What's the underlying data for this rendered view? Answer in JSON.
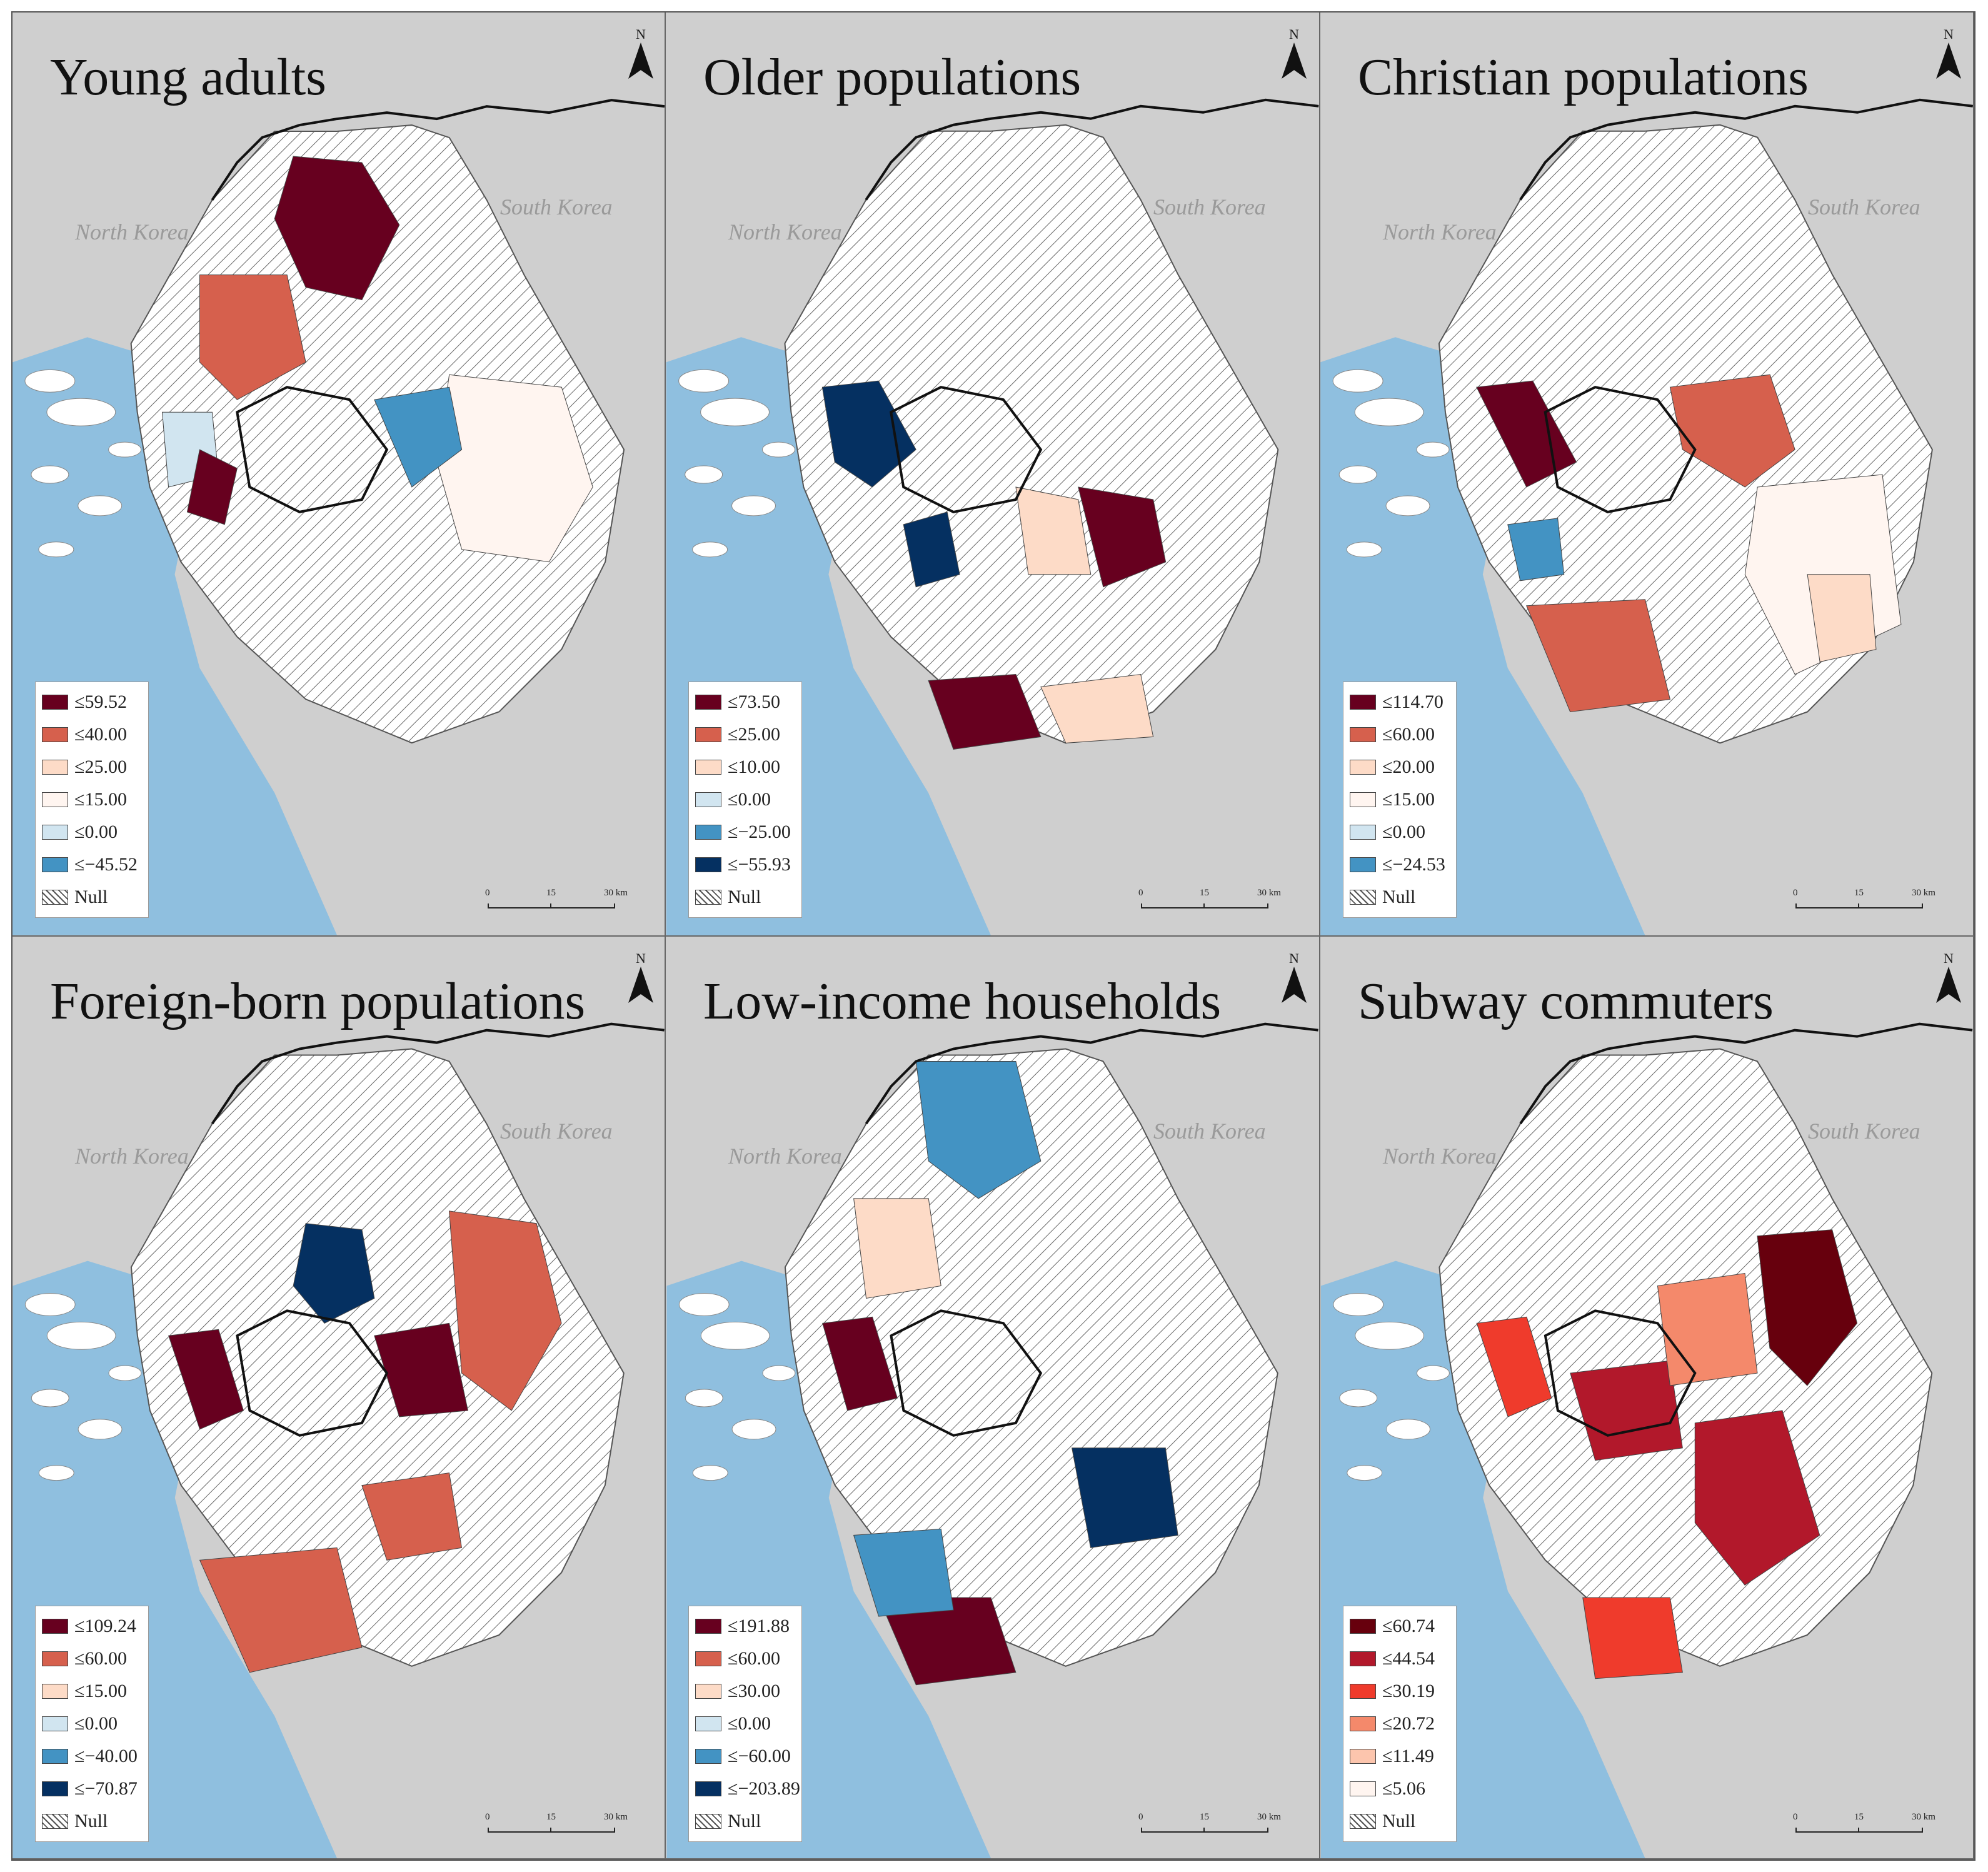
{
  "country_labels": {
    "north": "North Korea",
    "south": "South Korea"
  },
  "north_arrow": "N",
  "scale_bar": {
    "ticks": [
      "0",
      "15",
      "30 km"
    ]
  },
  "panels": [
    {
      "title": "Young adults",
      "legend": [
        {
          "label": "≤59.52",
          "color": "#67001f"
        },
        {
          "label": "≤40.00",
          "color": "#d6604d"
        },
        {
          "label": "≤25.00",
          "color": "#fddbc7"
        },
        {
          "label": "≤15.00",
          "color": "#fff5f0"
        },
        {
          "label": "≤0.00",
          "color": "#d1e5f0"
        },
        {
          "label": "≤−45.52",
          "color": "#4393c3"
        },
        {
          "label": "Null",
          "color": "hatch"
        }
      ]
    },
    {
      "title": "Older populations",
      "legend": [
        {
          "label": "≤73.50",
          "color": "#67001f"
        },
        {
          "label": "≤25.00",
          "color": "#d6604d"
        },
        {
          "label": "≤10.00",
          "color": "#fddbc7"
        },
        {
          "label": "≤0.00",
          "color": "#d1e5f0"
        },
        {
          "label": "≤−25.00",
          "color": "#4393c3"
        },
        {
          "label": "≤−55.93",
          "color": "#053061"
        },
        {
          "label": "Null",
          "color": "hatch"
        }
      ]
    },
    {
      "title": "Christian populations",
      "legend": [
        {
          "label": "≤114.70",
          "color": "#67001f"
        },
        {
          "label": "≤60.00",
          "color": "#d6604d"
        },
        {
          "label": "≤20.00",
          "color": "#fddbc7"
        },
        {
          "label": "≤15.00",
          "color": "#fff5f0"
        },
        {
          "label": "≤0.00",
          "color": "#d1e5f0"
        },
        {
          "label": "≤−24.53",
          "color": "#4393c3"
        },
        {
          "label": "Null",
          "color": "hatch"
        }
      ]
    },
    {
      "title": "Foreign-born populations",
      "legend": [
        {
          "label": "≤109.24",
          "color": "#67001f"
        },
        {
          "label": "≤60.00",
          "color": "#d6604d"
        },
        {
          "label": "≤15.00",
          "color": "#fddbc7"
        },
        {
          "label": "≤0.00",
          "color": "#d1e5f0"
        },
        {
          "label": "≤−40.00",
          "color": "#4393c3"
        },
        {
          "label": "≤−70.87",
          "color": "#053061"
        },
        {
          "label": "Null",
          "color": "hatch"
        }
      ]
    },
    {
      "title": "Low-income households",
      "legend": [
        {
          "label": "≤191.88",
          "color": "#67001f"
        },
        {
          "label": "≤60.00",
          "color": "#d6604d"
        },
        {
          "label": "≤30.00",
          "color": "#fddbc7"
        },
        {
          "label": "≤0.00",
          "color": "#d1e5f0"
        },
        {
          "label": "≤−60.00",
          "color": "#4393c3"
        },
        {
          "label": "≤−203.89",
          "color": "#053061"
        },
        {
          "label": "Null",
          "color": "hatch"
        }
      ]
    },
    {
      "title": "Subway commuters",
      "legend": [
        {
          "label": "≤60.74",
          "color": "#67000d"
        },
        {
          "label": "≤44.54",
          "color": "#b2182b"
        },
        {
          "label": "≤30.19",
          "color": "#ef3b2c"
        },
        {
          "label": "≤20.72",
          "color": "#f4896b"
        },
        {
          "label": "≤11.49",
          "color": "#fcc5ad"
        },
        {
          "label": "≤5.06",
          "color": "#fff5f0"
        },
        {
          "label": "Null",
          "color": "hatch"
        }
      ]
    }
  ]
}
